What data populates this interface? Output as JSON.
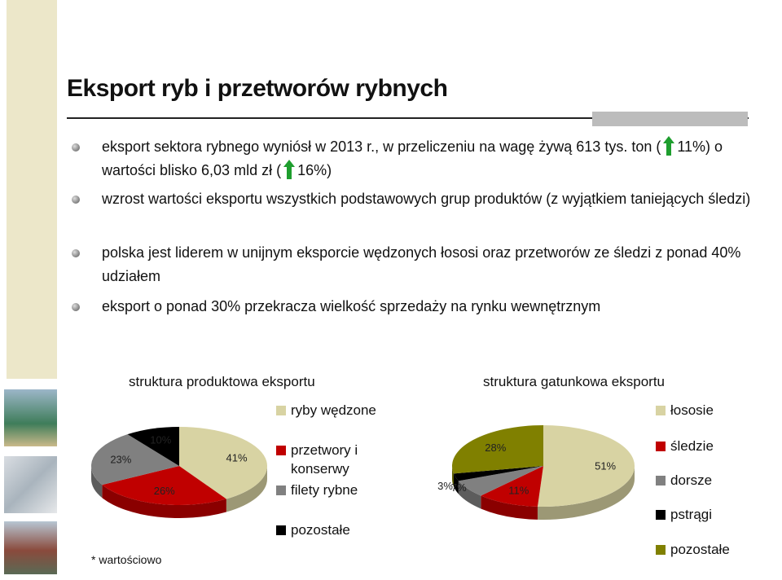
{
  "title": "Eksport ryb i przetworów rybnych",
  "bullets": [
    [
      "eksport sektora rybnego wyniósł w 2013 r., w przeliczeniu na wagę żywą 613 tys. ton (",
      "11%) o wartości blisko 6,03 mld zł (",
      "16%)"
    ],
    [
      "wzrost wartości eksportu wszystkich podstawowych grup produktów (z wyjątkiem taniejących śledzi)"
    ],
    [
      "polska jest liderem w unijnym eksporcie wędzonych łososi oraz przetworów ze śledzi z ponad 40% udziałem"
    ],
    [
      "eksport o ponad 30% przekracza wielkość sprzedaży na rynku wewnętrznym"
    ]
  ],
  "footnote": "* wartościowo",
  "chart_data": [
    {
      "type": "pie",
      "title": "struktura produktowa eksportu",
      "categories": [
        "ryby wędzone",
        "przetwory i konserwy",
        "filety rybne",
        "pozostałe"
      ],
      "values": [
        41,
        26,
        23,
        10
      ],
      "value_labels": [
        "41%",
        "26%",
        "23%",
        "10%"
      ],
      "colors": [
        "#d8d3a3",
        "#c00000",
        "#808080",
        "#000000"
      ]
    },
    {
      "type": "pie",
      "title": "struktura gatunkowa eksportu",
      "categories": [
        "łososie",
        "śledzie",
        "dorsze",
        "pstrągi",
        "pozostałe"
      ],
      "values": [
        51,
        11,
        7,
        3,
        28
      ],
      "value_labels": [
        "51%",
        "11%",
        "7%",
        "3%",
        "28%"
      ],
      "colors": [
        "#d8d3a3",
        "#c00000",
        "#808080",
        "#000000",
        "#808000"
      ]
    }
  ]
}
